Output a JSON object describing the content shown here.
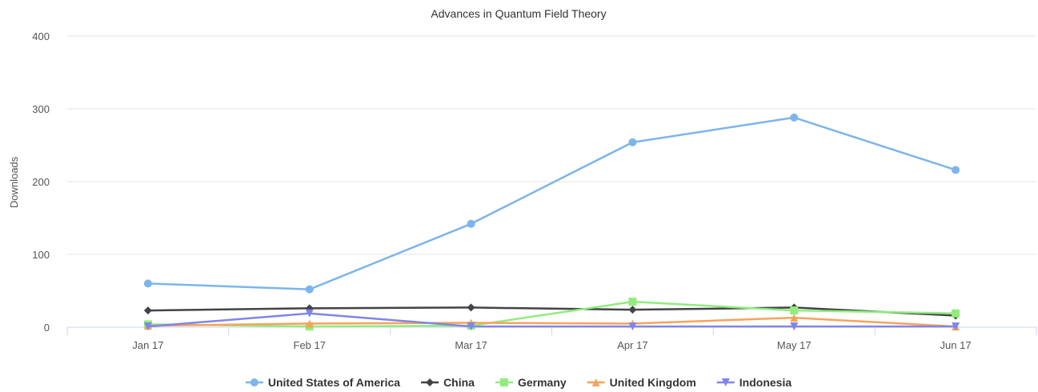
{
  "chart_data": {
    "type": "line",
    "title": "Advances in Quantum Field Theory",
    "xlabel": "",
    "ylabel": "Downloads",
    "categories": [
      "Jan 17",
      "Feb 17",
      "Mar 17",
      "Apr 17",
      "May 17",
      "Jun 17"
    ],
    "ylim": [
      0,
      400
    ],
    "yticks": [
      0,
      100,
      200,
      300,
      400
    ],
    "grid": true,
    "legend_position": "bottom",
    "series": [
      {
        "name": "United States of America",
        "color": "#7cb5ec",
        "marker": "circle",
        "values": [
          60,
          52,
          142,
          254,
          288,
          216
        ]
      },
      {
        "name": "China",
        "color": "#434348",
        "marker": "diamond",
        "values": [
          23,
          26,
          27,
          24,
          27,
          16
        ]
      },
      {
        "name": "Germany",
        "color": "#90ed7d",
        "marker": "square",
        "values": [
          4,
          1,
          2,
          35,
          23,
          19
        ]
      },
      {
        "name": "United Kingdom",
        "color": "#f7a35c",
        "marker": "triangle",
        "values": [
          2,
          5,
          6,
          5,
          13,
          1
        ]
      },
      {
        "name": "Indonesia",
        "color": "#8085e9",
        "marker": "triangle-down",
        "values": [
          1,
          19,
          1,
          1,
          1,
          1
        ]
      }
    ]
  }
}
